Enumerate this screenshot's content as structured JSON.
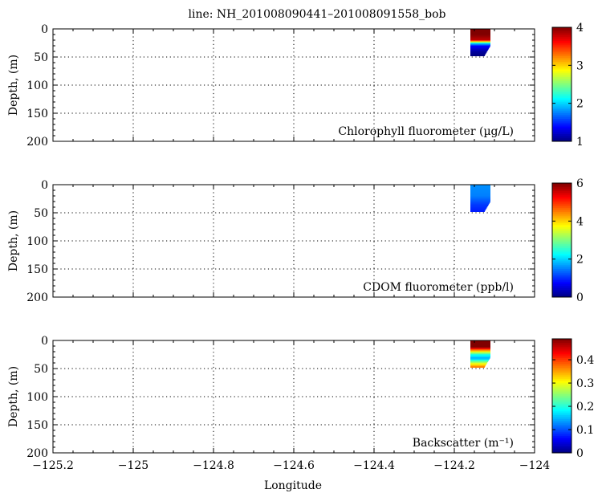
{
  "title": "line: NH_201008090441–201008091558_bob",
  "xlabel": "Longitude",
  "ylabel": "Depth, (m)",
  "chart_data": [
    {
      "type": "heatmap",
      "name": "chlorophyll",
      "label": "Chlorophyll fluorometer (µg/L)",
      "xlim": [
        -125.2,
        -124.0
      ],
      "ylim": [
        0,
        200
      ],
      "y_inverted": true,
      "xticks": [
        -125.2,
        -125.0,
        -124.8,
        -124.6,
        -124.4,
        -124.2,
        -124.0
      ],
      "yticks": [
        0,
        50,
        100,
        150,
        200
      ],
      "grid": true,
      "colorbar": {
        "min": 1,
        "max": 4,
        "ticks": [
          1,
          2,
          3,
          4
        ],
        "colormap": "jet"
      },
      "data_extent": {
        "lon": [
          -124.16,
          -124.11
        ],
        "depth": [
          0,
          48
        ]
      },
      "profile": [
        {
          "depth": 0,
          "value": 4.0
        },
        {
          "depth": 10,
          "value": 4.0
        },
        {
          "depth": 20,
          "value": 3.8
        },
        {
          "depth": 25,
          "value": 2.2
        },
        {
          "depth": 30,
          "value": 1.4
        },
        {
          "depth": 40,
          "value": 1.1
        },
        {
          "depth": 48,
          "value": 1.0
        }
      ]
    },
    {
      "type": "heatmap",
      "name": "cdom",
      "label": "CDOM fluorometer (ppb/l)",
      "xlim": [
        -125.2,
        -124.0
      ],
      "ylim": [
        0,
        200
      ],
      "y_inverted": true,
      "xticks": [
        -125.2,
        -125.0,
        -124.8,
        -124.6,
        -124.4,
        -124.2,
        -124.0
      ],
      "yticks": [
        0,
        50,
        100,
        150,
        200
      ],
      "grid": true,
      "colorbar": {
        "min": 0,
        "max": 6,
        "ticks": [
          0,
          2,
          4,
          6
        ],
        "colormap": "jet"
      },
      "data_extent": {
        "lon": [
          -124.16,
          -124.11
        ],
        "depth": [
          0,
          48
        ]
      },
      "profile": [
        {
          "depth": 0,
          "value": 1.6
        },
        {
          "depth": 20,
          "value": 1.5
        },
        {
          "depth": 35,
          "value": 1.1
        },
        {
          "depth": 48,
          "value": 0.9
        }
      ]
    },
    {
      "type": "heatmap",
      "name": "backscatter",
      "label": "Backscatter (m⁻¹)",
      "xlim": [
        -125.2,
        -124.0
      ],
      "ylim": [
        0,
        200
      ],
      "y_inverted": true,
      "xticks": [
        -125.2,
        -125.0,
        -124.8,
        -124.6,
        -124.4,
        -124.2,
        -124.0
      ],
      "yticks": [
        0,
        50,
        100,
        150,
        200
      ],
      "grid": true,
      "colorbar": {
        "min": 0,
        "max": 0.49,
        "ticks": [
          0,
          0.1,
          0.2,
          0.3,
          0.4
        ],
        "colormap": "jet"
      },
      "data_extent": {
        "lon": [
          -124.16,
          -124.11
        ],
        "depth": [
          0,
          48
        ]
      },
      "profile": [
        {
          "depth": 0,
          "value": 0.49
        },
        {
          "depth": 12,
          "value": 0.49
        },
        {
          "depth": 18,
          "value": 0.35
        },
        {
          "depth": 25,
          "value": 0.2
        },
        {
          "depth": 32,
          "value": 0.14
        },
        {
          "depth": 40,
          "value": 0.28
        },
        {
          "depth": 48,
          "value": 0.38
        }
      ]
    }
  ]
}
